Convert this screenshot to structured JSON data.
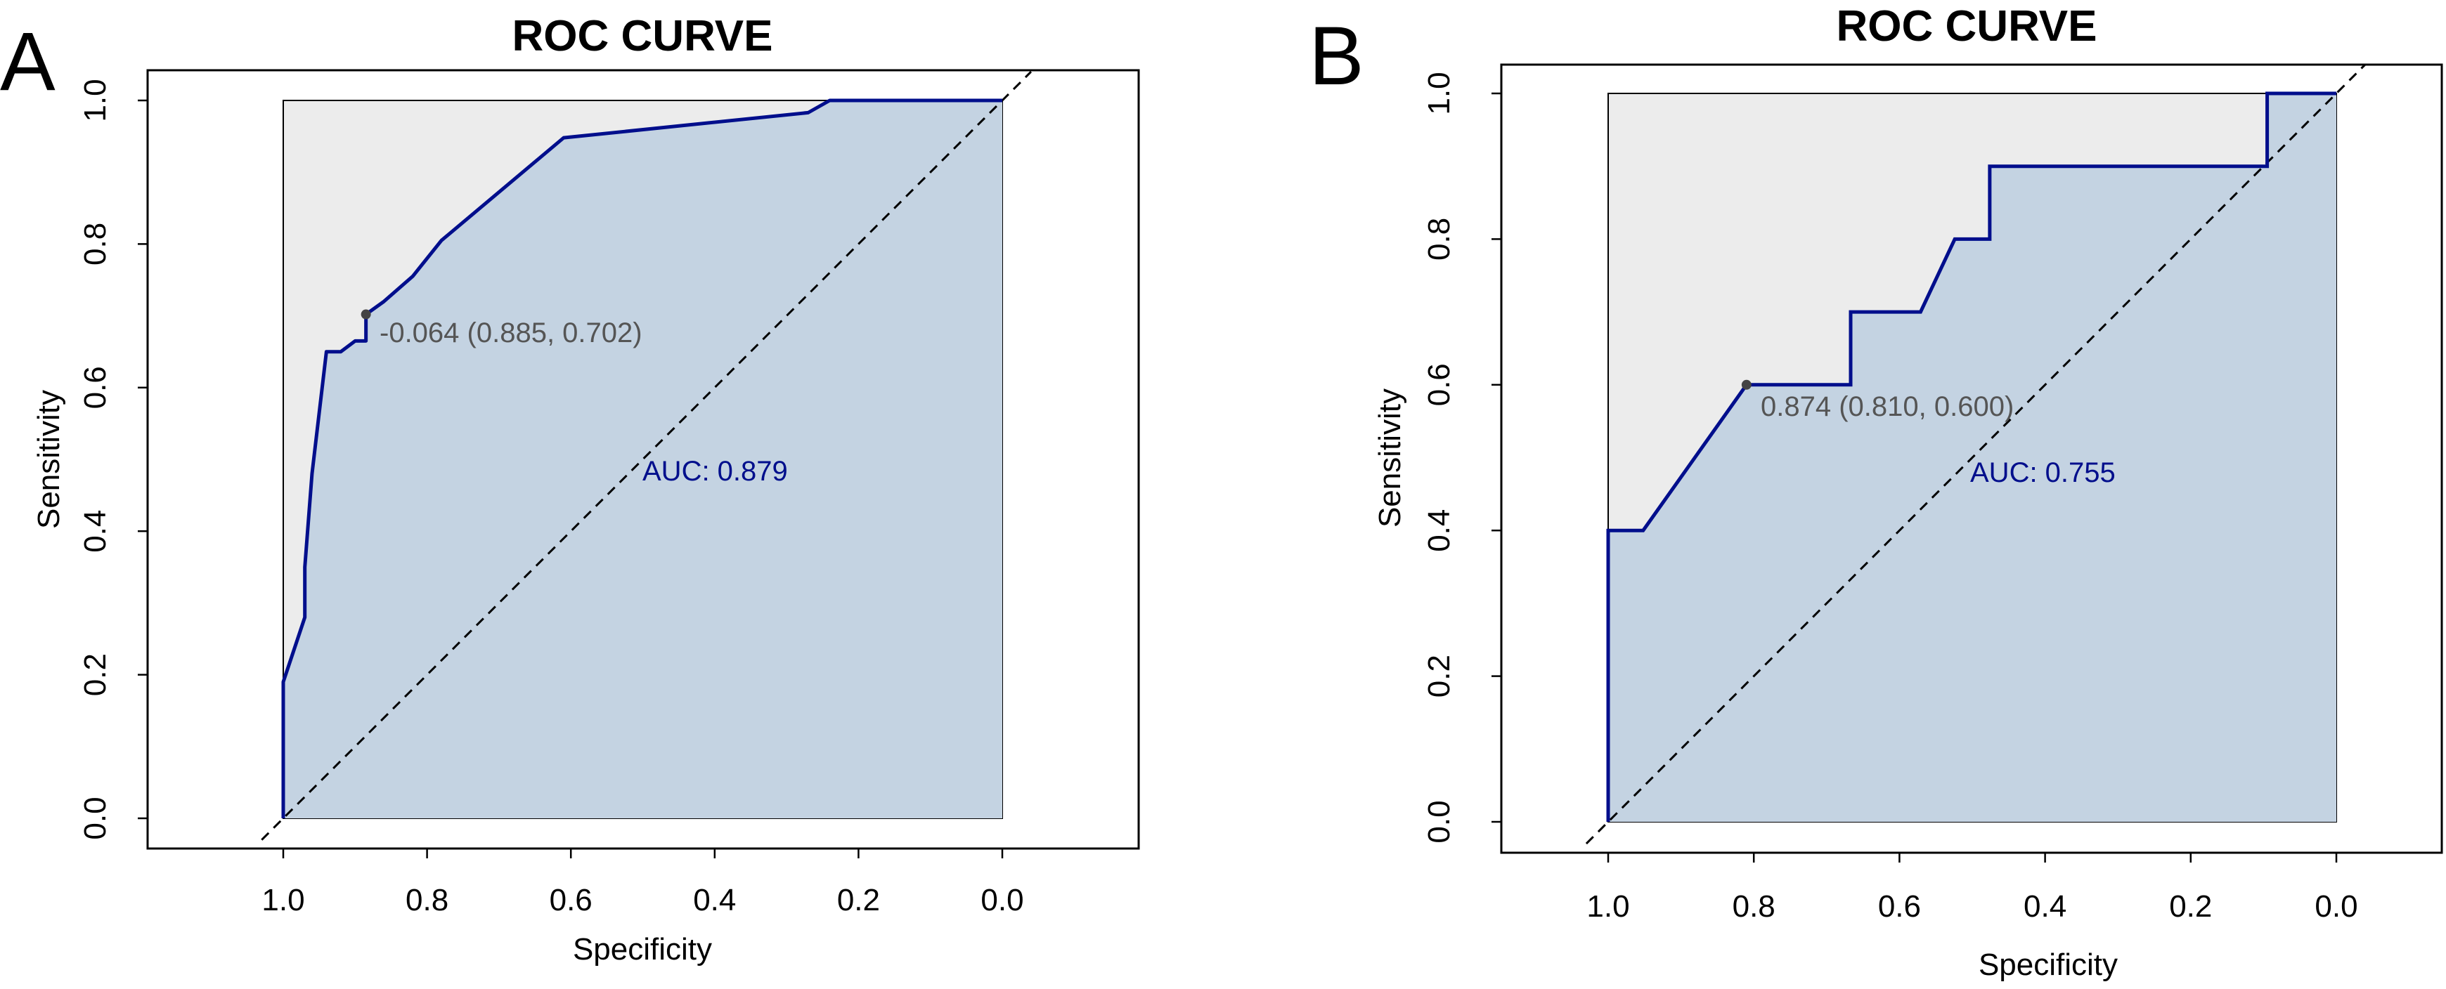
{
  "colors": {
    "background_region": "#ececec",
    "auc_fill": "#c4d3e2",
    "curve": "#000e8c",
    "auc_text": "#000e8c",
    "annotation_text": "#555555",
    "frame": "#000000",
    "threshold_point": "#444444"
  },
  "chart_data": [
    {
      "panel": "A",
      "type": "line",
      "title": "ROC CURVE",
      "xlabel": "Specificity",
      "ylabel": "Sensitivity",
      "xlim": [
        1.0,
        0.0
      ],
      "ylim": [
        0.0,
        1.0
      ],
      "x_ticks": [
        "1.0",
        "0.8",
        "0.6",
        "0.4",
        "0.2",
        "0.0"
      ],
      "y_ticks": [
        "0.0",
        "0.2",
        "0.4",
        "0.6",
        "0.8",
        "1.0"
      ],
      "series": [
        {
          "name": "ROC",
          "specificity": [
            1.0,
            1.0,
            0.99,
            0.97,
            0.97,
            0.96,
            0.94,
            0.92,
            0.9,
            0.885,
            0.885,
            0.86,
            0.82,
            0.78,
            0.61,
            0.27,
            0.24,
            0.0
          ],
          "sensitivity": [
            0.0,
            0.19,
            0.22,
            0.28,
            0.35,
            0.48,
            0.65,
            0.65,
            0.665,
            0.665,
            0.702,
            0.72,
            0.755,
            0.805,
            0.948,
            0.983,
            1.0,
            1.0
          ]
        }
      ],
      "threshold_point": {
        "specificity": 0.885,
        "sensitivity": 0.702
      },
      "threshold_label": "-0.064 (0.885, 0.702)",
      "auc_label": "AUC: 0.879",
      "diagonal": "dashed"
    },
    {
      "panel": "B",
      "type": "line",
      "title": "ROC CURVE",
      "xlabel": "Specificity",
      "ylabel": "Sensitivity",
      "xlim": [
        1.0,
        0.0
      ],
      "ylim": [
        0.0,
        1.0
      ],
      "x_ticks": [
        "1.0",
        "0.8",
        "0.6",
        "0.4",
        "0.2",
        "0.0"
      ],
      "y_ticks": [
        "0.0",
        "0.2",
        "0.4",
        "0.6",
        "0.8",
        "1.0"
      ],
      "series": [
        {
          "name": "ROC",
          "specificity": [
            1.0,
            1.0,
            0.952,
            0.81,
            0.667,
            0.667,
            0.571,
            0.524,
            0.476,
            0.476,
            0.095,
            0.095,
            0.0
          ],
          "sensitivity": [
            0.0,
            0.4,
            0.4,
            0.6,
            0.6,
            0.7,
            0.7,
            0.8,
            0.8,
            0.9,
            0.9,
            1.0,
            1.0
          ]
        }
      ],
      "threshold_point": {
        "specificity": 0.81,
        "sensitivity": 0.6
      },
      "threshold_label": "0.874 (0.810, 0.600)",
      "auc_label": "AUC: 0.755",
      "diagonal": "dashed"
    }
  ]
}
